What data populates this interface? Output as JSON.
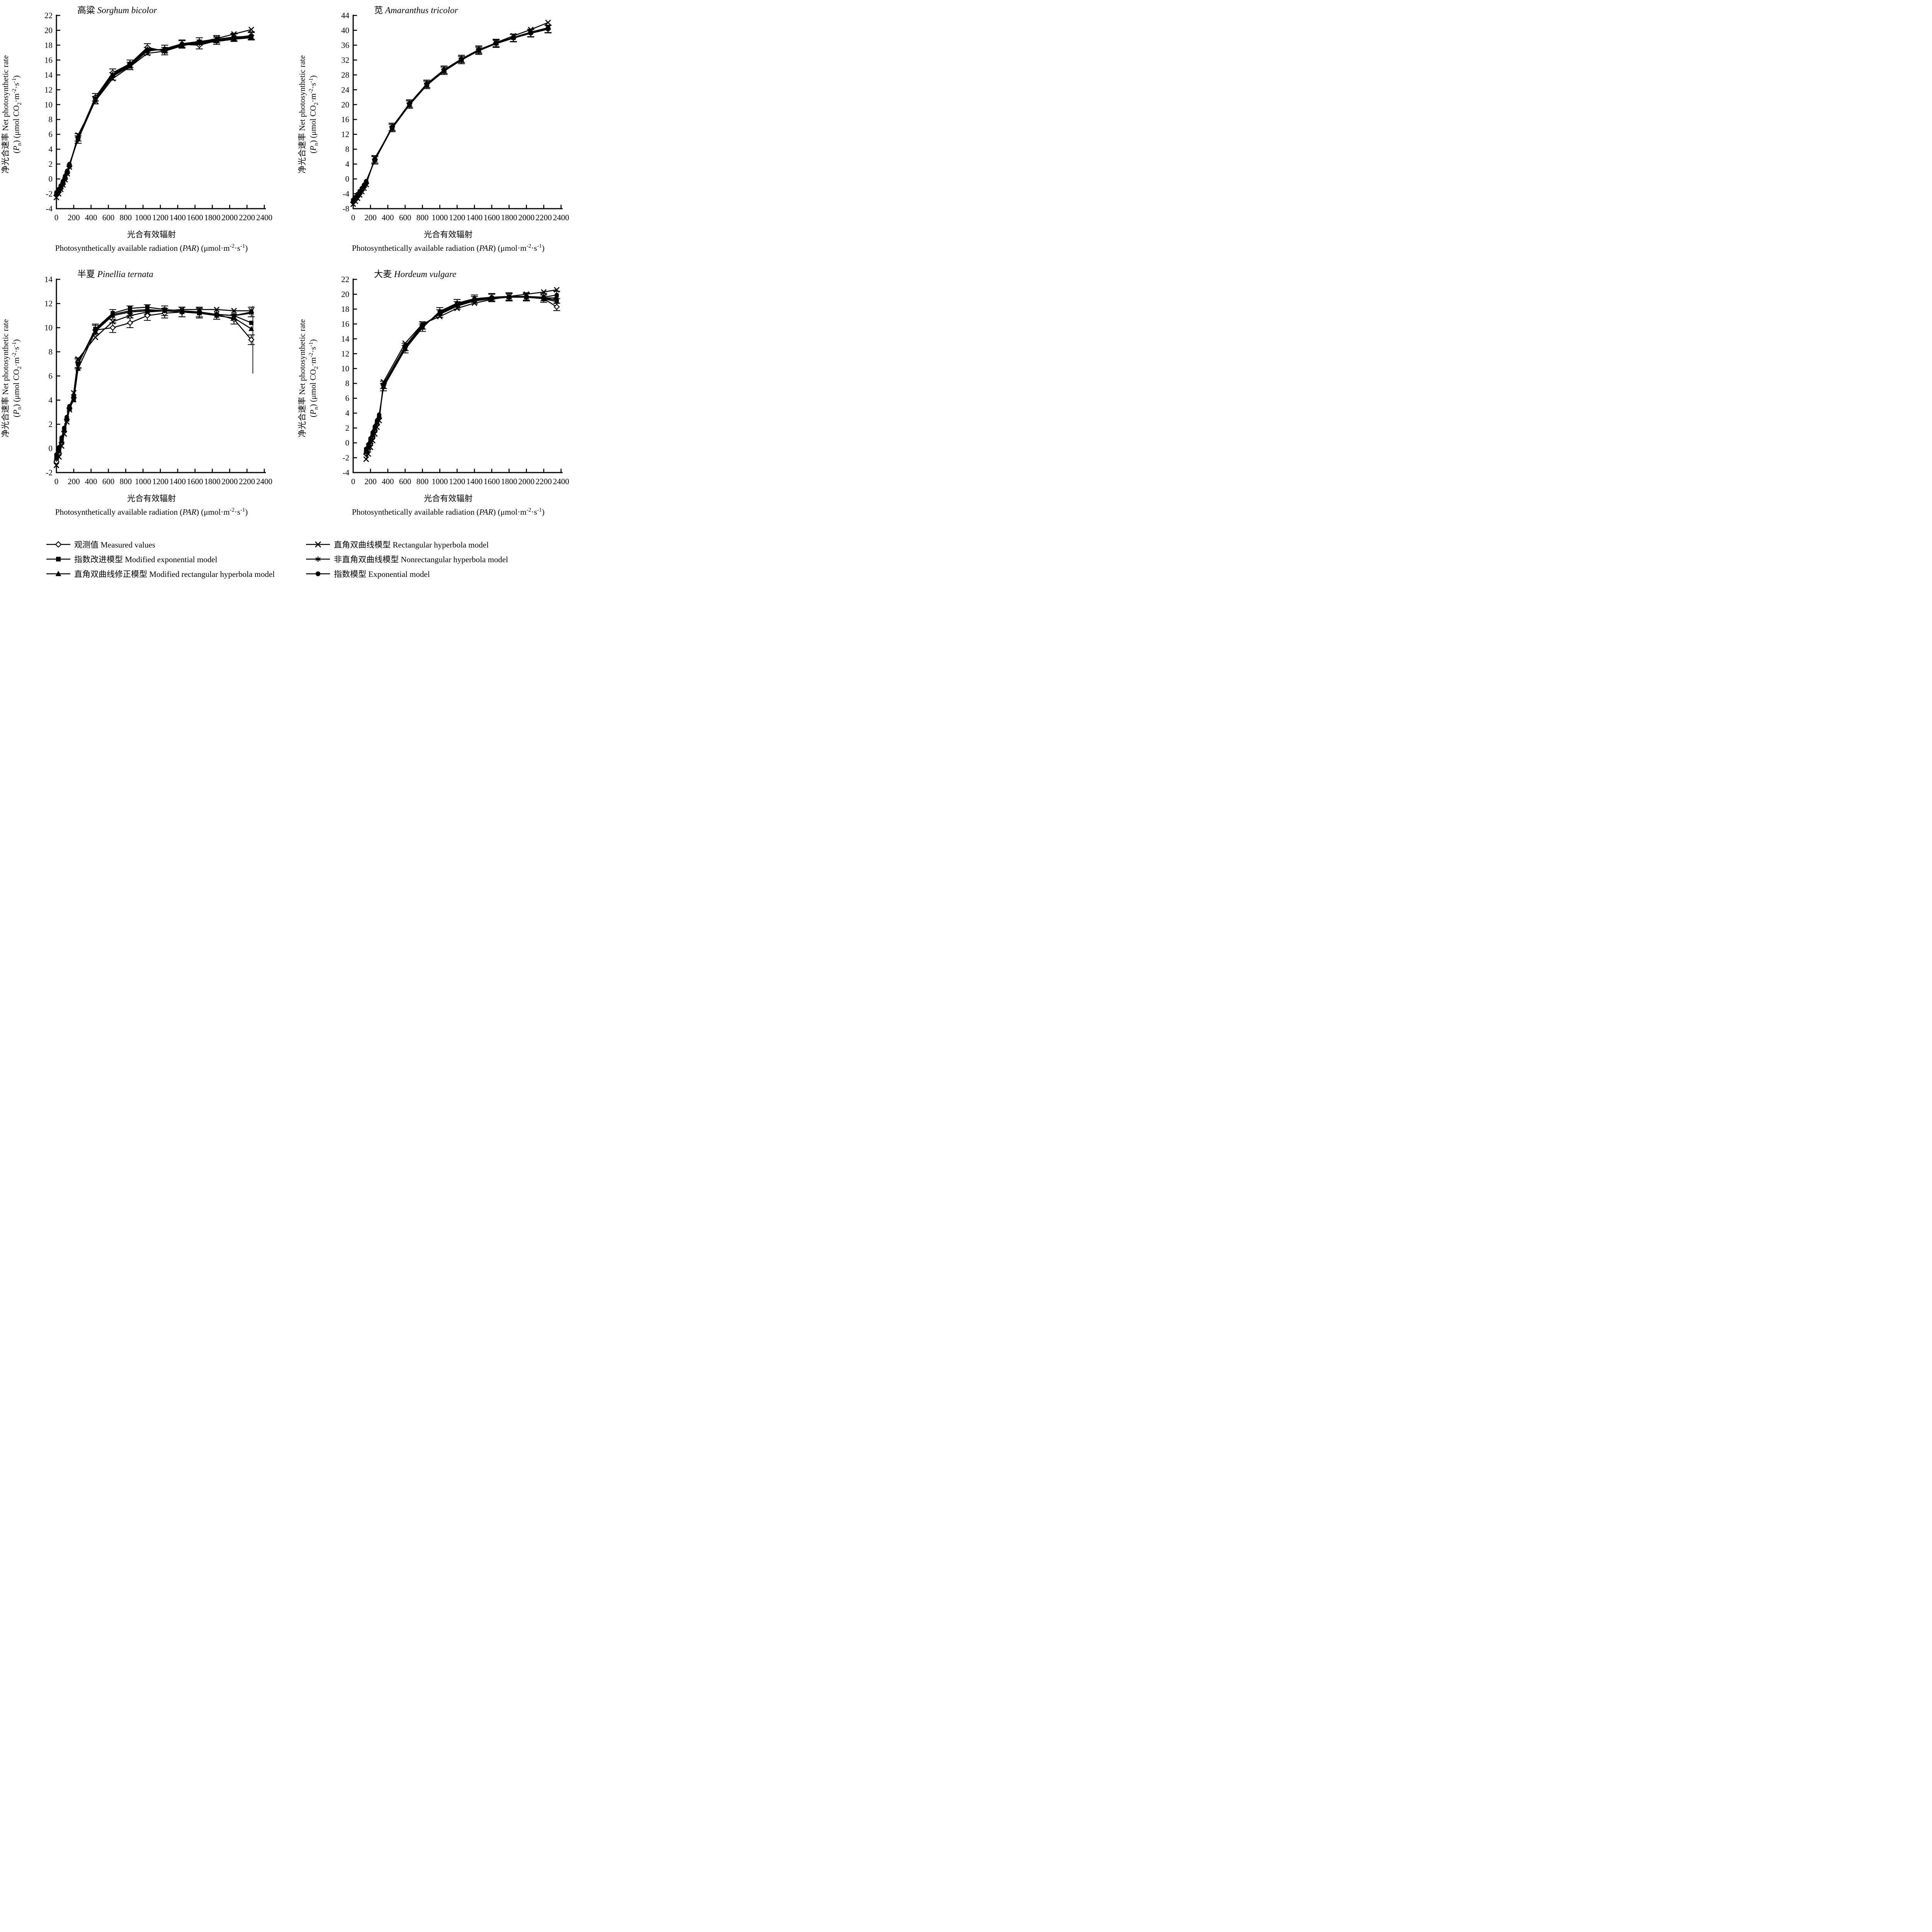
{
  "page": {
    "bg": "#ffffff",
    "fg": "#000000"
  },
  "labels": {
    "y_axis_zh_en": "净光合速率 Net photosynthetic rate",
    "y_axis_units_rich": [
      [
        "(",
        ""
      ],
      [
        "P",
        "i"
      ],
      [
        "n",
        "sub"
      ],
      [
        ") (μmol CO",
        ""
      ],
      [
        "2",
        "sub"
      ],
      [
        "·m",
        ""
      ],
      [
        "-2",
        "sup"
      ],
      [
        "·s",
        ""
      ],
      [
        "-1",
        "sup"
      ],
      [
        ")",
        ""
      ]
    ],
    "x_axis_zh": "光合有效辐射",
    "x_axis_en_rich": [
      [
        "Photosynthetically available radiation (",
        ""
      ],
      [
        "PAR",
        "i"
      ],
      [
        ") (μmol·m",
        ""
      ],
      [
        "-2",
        "sup"
      ],
      [
        "·s",
        ""
      ],
      [
        "-1",
        "sup"
      ],
      [
        ")",
        ""
      ]
    ]
  },
  "legend": {
    "columns": [
      {
        "items": [
          {
            "key": "measured",
            "marker": "diamond-open",
            "label": "观测值 Measured values"
          },
          {
            "key": "modified-exponential",
            "marker": "square-filled",
            "label": "指数改进模型 Modified exponential model"
          },
          {
            "key": "modified-rectangular-hyperbola",
            "marker": "triangle-filled",
            "label": "直角双曲线修正模型 Modified rectangular hyperbola model"
          }
        ]
      },
      {
        "items": [
          {
            "key": "rectangular-hyperbola",
            "marker": "x",
            "label": "直角双曲线模型 Rectangular hyperbola model"
          },
          {
            "key": "nonrectangular-hyperbola",
            "marker": "asterisk",
            "label": "非直角双曲线模型 Nonrectangular hyperbola model"
          },
          {
            "key": "exponential",
            "marker": "circle-filled",
            "label": "指数模型 Exponential model"
          }
        ]
      }
    ]
  },
  "chart_data": [
    {
      "id": "sorghum",
      "type": "line",
      "title_rich": [
        [
          "高粱 ",
          ""
        ],
        [
          "Sorghum bicolor",
          "i"
        ]
      ],
      "xlim": [
        0,
        2400
      ],
      "xtick": 200,
      "ylim": [
        -4,
        22
      ],
      "ytick": 2,
      "err_halfwidth": 0.5,
      "err_min_x": 240,
      "x": [
        0,
        25,
        50,
        75,
        100,
        125,
        150,
        250,
        450,
        650,
        850,
        1050,
        1250,
        1450,
        1650,
        1850,
        2050,
        2250
      ],
      "series": [
        {
          "key": "measured",
          "marker": "diamond-open",
          "err": true,
          "label": "观测值 Measured values",
          "y": [
            -2.2,
            -1.8,
            -1.3,
            -0.7,
            0.0,
            0.8,
            1.7,
            5.6,
            11.0,
            14.3,
            15.5,
            17.7,
            17.2,
            18.1,
            18.0,
            18.6,
            19.0,
            19.3
          ]
        },
        {
          "key": "modified-exponential",
          "marker": "square-filled",
          "err": false,
          "label": "指数改进模型 Modified exponential model",
          "y": [
            -2.0,
            -1.6,
            -1.1,
            -0.5,
            0.2,
            0.9,
            1.8,
            5.5,
            10.8,
            14.0,
            15.4,
            17.4,
            17.4,
            18.0,
            18.3,
            18.6,
            18.9,
            19.0
          ]
        },
        {
          "key": "modified-rectangular-hyperbola",
          "marker": "triangle-filled",
          "err": false,
          "label": "直角双曲线修正模型 Modified rectangular hyperbola model",
          "y": [
            -1.9,
            -1.5,
            -1.0,
            -0.4,
            0.3,
            1.0,
            1.9,
            5.6,
            10.7,
            13.9,
            15.3,
            17.3,
            17.4,
            18.1,
            18.4,
            18.7,
            19.0,
            19.1
          ]
        },
        {
          "key": "rectangular-hyperbola",
          "marker": "x",
          "err": false,
          "label": "直角双曲线模型 Rectangular hyperbola model",
          "y": [
            -2.5,
            -2.0,
            -1.4,
            -0.8,
            -0.1,
            0.7,
            1.6,
            5.9,
            10.5,
            13.5,
            15.1,
            16.9,
            17.2,
            17.9,
            18.4,
            18.9,
            19.5,
            20.1
          ]
        },
        {
          "key": "nonrectangular-hyperbola",
          "marker": "asterisk",
          "err": false,
          "label": "非直角双曲线模型 Nonrectangular hyperbola model",
          "y": [
            -2.1,
            -1.7,
            -1.2,
            -0.6,
            0.1,
            0.9,
            1.8,
            5.4,
            10.9,
            14.1,
            15.5,
            17.5,
            17.3,
            18.0,
            18.2,
            18.5,
            18.8,
            19.0
          ]
        },
        {
          "key": "exponential",
          "marker": "circle-filled",
          "err": true,
          "label": "指数模型 Exponential model",
          "y": [
            -1.8,
            -1.4,
            -0.9,
            -0.3,
            0.4,
            1.1,
            2.0,
            5.3,
            10.6,
            13.8,
            15.2,
            17.2,
            17.5,
            18.2,
            18.5,
            18.8,
            19.1,
            19.2
          ]
        }
      ]
    },
    {
      "id": "amaranthus",
      "type": "line",
      "title_rich": [
        [
          "苋 ",
          ""
        ],
        [
          "Amaranthus tricolor",
          "i"
        ]
      ],
      "xlim": [
        0,
        2400
      ],
      "xtick": 200,
      "ylim": [
        -8,
        44
      ],
      "ytick": 4,
      "err_halfwidth": 1.0,
      "err_min_x": 240,
      "x": [
        0,
        25,
        50,
        75,
        100,
        125,
        150,
        250,
        450,
        650,
        850,
        1050,
        1250,
        1450,
        1650,
        1850,
        2050,
        2250
      ],
      "series": [
        {
          "key": "measured",
          "marker": "diamond-open",
          "err": true,
          "label": "观测值 Measured values",
          "y": [
            -6.3,
            -5.6,
            -4.8,
            -4.0,
            -3.1,
            -2.2,
            -1.2,
            5.3,
            14.0,
            20.3,
            25.6,
            29.4,
            32.3,
            34.8,
            36.6,
            38.0,
            39.3,
            40.4
          ]
        },
        {
          "key": "modified-exponential",
          "marker": "square-filled",
          "err": false,
          "label": "指数改进模型 Modified exponential model",
          "y": [
            -6.0,
            -5.3,
            -4.5,
            -3.7,
            -2.8,
            -1.9,
            -0.9,
            5.1,
            13.8,
            20.1,
            25.4,
            29.2,
            32.1,
            34.6,
            36.5,
            38.0,
            39.4,
            40.6
          ]
        },
        {
          "key": "modified-rectangular-hyperbola",
          "marker": "triangle-filled",
          "err": false,
          "label": "直角双曲线修正模型 Modified rectangular hyperbola model",
          "y": [
            -5.8,
            -5.1,
            -4.3,
            -3.5,
            -2.6,
            -1.7,
            -0.8,
            5.2,
            13.9,
            20.2,
            25.5,
            29.3,
            32.2,
            34.7,
            36.6,
            38.1,
            39.5,
            40.7
          ]
        },
        {
          "key": "rectangular-hyperbola",
          "marker": "x",
          "err": false,
          "label": "直角双曲线模型 Rectangular hyperbola model",
          "y": [
            -6.8,
            -6.0,
            -5.2,
            -4.3,
            -3.4,
            -2.5,
            -1.5,
            5.6,
            13.6,
            19.9,
            25.2,
            29.0,
            32.0,
            34.6,
            36.7,
            38.5,
            40.2,
            42.1
          ]
        },
        {
          "key": "nonrectangular-hyperbola",
          "marker": "asterisk",
          "err": false,
          "label": "非直角双曲线模型 Nonrectangular hyperbola model",
          "y": [
            -6.2,
            -5.5,
            -4.7,
            -3.9,
            -3.0,
            -2.1,
            -1.1,
            5.2,
            13.9,
            20.2,
            25.5,
            29.3,
            32.2,
            34.7,
            36.5,
            38.0,
            39.3,
            40.5
          ]
        },
        {
          "key": "exponential",
          "marker": "circle-filled",
          "err": true,
          "label": "指数模型 Exponential model",
          "y": [
            -5.6,
            -4.9,
            -4.1,
            -3.3,
            -2.5,
            -1.6,
            -0.6,
            5.0,
            13.7,
            20.0,
            25.3,
            29.1,
            32.0,
            34.5,
            36.4,
            37.9,
            39.2,
            40.3
          ]
        }
      ]
    },
    {
      "id": "pinellia",
      "type": "line",
      "title_rich": [
        [
          "半夏 ",
          ""
        ],
        [
          "Pinellia ternata",
          "i"
        ]
      ],
      "xlim": [
        0,
        2400
      ],
      "xtick": 200,
      "ylim": [
        -2,
        14
      ],
      "ytick": 2,
      "err_halfwidth": 0.4,
      "err_min_x": 240,
      "measured_last_err": 2.8,
      "x": [
        0,
        30,
        60,
        90,
        120,
        150,
        200,
        250,
        450,
        650,
        850,
        1050,
        1250,
        1450,
        1650,
        1850,
        2050,
        2250
      ],
      "series": [
        {
          "key": "measured",
          "marker": "diamond-open",
          "err": true,
          "label": "观测值 Measured values",
          "y": [
            -1.1,
            -0.4,
            0.5,
            1.4,
            2.4,
            3.3,
            4.2,
            7.1,
            9.8,
            10.0,
            10.4,
            11.0,
            11.2,
            11.3,
            11.3,
            11.1,
            10.7,
            9.0
          ]
        },
        {
          "key": "modified-exponential",
          "marker": "square-filled",
          "err": false,
          "label": "指数改进模型 Modified exponential model",
          "y": [
            -0.6,
            0.0,
            0.8,
            1.6,
            2.5,
            3.4,
            4.1,
            7.0,
            9.9,
            11.2,
            11.6,
            11.7,
            11.5,
            11.4,
            11.3,
            11.1,
            11.0,
            10.4
          ]
        },
        {
          "key": "modified-rectangular-hyperbola",
          "marker": "triangle-filled",
          "err": false,
          "label": "直角双曲线修正模型 Modified rectangular hyperbola model",
          "y": [
            -0.8,
            -0.2,
            0.6,
            1.5,
            2.4,
            3.3,
            4.0,
            6.6,
            9.7,
            11.0,
            11.3,
            11.4,
            11.4,
            11.3,
            11.2,
            11.0,
            10.8,
            9.9
          ]
        },
        {
          "key": "rectangular-hyperbola",
          "marker": "x",
          "err": false,
          "label": "直角双曲线模型 Rectangular hyperbola model",
          "y": [
            -1.4,
            -0.7,
            0.2,
            1.2,
            2.2,
            3.2,
            4.6,
            7.4,
            9.2,
            10.5,
            11.0,
            11.3,
            11.4,
            11.5,
            11.5,
            11.5,
            11.4,
            11.4
          ]
        },
        {
          "key": "nonrectangular-hyperbola",
          "marker": "asterisk",
          "err": false,
          "label": "非直角双曲线模型 Nonrectangular hyperbola model",
          "y": [
            -0.9,
            -0.3,
            0.6,
            1.5,
            2.4,
            3.3,
            4.2,
            7.0,
            9.8,
            11.0,
            11.3,
            11.4,
            11.4,
            11.3,
            11.2,
            11.1,
            11.0,
            11.2
          ]
        },
        {
          "key": "exponential",
          "marker": "circle-filled",
          "err": true,
          "label": "指数模型 Exponential model",
          "y": [
            -0.5,
            0.1,
            0.9,
            1.7,
            2.6,
            3.5,
            4.3,
            7.0,
            9.9,
            11.1,
            11.4,
            11.5,
            11.4,
            11.3,
            11.2,
            11.1,
            11.0,
            11.3
          ]
        }
      ]
    },
    {
      "id": "hordeum",
      "type": "line",
      "title_rich": [
        [
          "大麦 ",
          ""
        ],
        [
          "Hordeum vulgare",
          "i"
        ]
      ],
      "xlim": [
        0,
        2400
      ],
      "xtick": 200,
      "ylim": [
        -4,
        22
      ],
      "ytick": 2,
      "err_halfwidth": 0.5,
      "err_min_x": 330,
      "x": [
        150,
        175,
        200,
        225,
        250,
        275,
        300,
        350,
        600,
        800,
        1000,
        1200,
        1400,
        1600,
        1800,
        2000,
        2200,
        2350
      ],
      "series": [
        {
          "key": "measured",
          "marker": "diamond-open",
          "err": true,
          "label": "观测值 Measured values",
          "y": [
            -1.5,
            -0.9,
            -0.1,
            0.8,
            1.7,
            2.5,
            3.3,
            7.8,
            12.9,
            15.8,
            17.4,
            18.5,
            19.2,
            19.5,
            19.6,
            19.6,
            19.4,
            18.3
          ]
        },
        {
          "key": "modified-exponential",
          "marker": "square-filled",
          "err": false,
          "label": "指数改进模型 Modified exponential model",
          "y": [
            -1.2,
            -0.6,
            0.2,
            1.0,
            1.9,
            2.7,
            3.5,
            7.7,
            12.8,
            15.7,
            17.5,
            18.6,
            19.2,
            19.5,
            19.6,
            19.6,
            19.5,
            19.2
          ]
        },
        {
          "key": "modified-rectangular-hyperbola",
          "marker": "triangle-filled",
          "err": false,
          "label": "直角双曲线修正模型 Modified rectangular hyperbola model",
          "y": [
            -1.0,
            -0.4,
            0.4,
            1.2,
            2.0,
            2.8,
            3.6,
            7.6,
            12.7,
            15.6,
            17.6,
            18.7,
            19.3,
            19.5,
            19.6,
            19.6,
            19.4,
            19.0
          ]
        },
        {
          "key": "rectangular-hyperbola",
          "marker": "x",
          "err": false,
          "label": "直角双曲线模型 Rectangular hyperbola model",
          "y": [
            -2.2,
            -1.5,
            -0.6,
            0.3,
            1.2,
            2.1,
            3.0,
            8.2,
            13.4,
            16.0,
            17.0,
            18.1,
            18.8,
            19.3,
            19.7,
            20.0,
            20.3,
            20.6
          ]
        },
        {
          "key": "nonrectangular-hyperbola",
          "marker": "asterisk",
          "err": false,
          "label": "非直角双曲线模型 Nonrectangular hyperbola model",
          "y": [
            -1.4,
            -0.8,
            0.0,
            0.9,
            1.8,
            2.6,
            3.4,
            7.9,
            13.0,
            15.9,
            17.3,
            18.4,
            19.1,
            19.4,
            19.6,
            19.6,
            19.5,
            19.5
          ]
        },
        {
          "key": "exponential",
          "marker": "circle-filled",
          "err": true,
          "label": "指数模型 Exponential model",
          "y": [
            -0.8,
            -0.2,
            0.6,
            1.4,
            2.2,
            3.0,
            3.8,
            7.5,
            12.6,
            15.5,
            17.7,
            18.8,
            19.4,
            19.6,
            19.7,
            19.7,
            19.6,
            19.9
          ]
        }
      ]
    }
  ]
}
